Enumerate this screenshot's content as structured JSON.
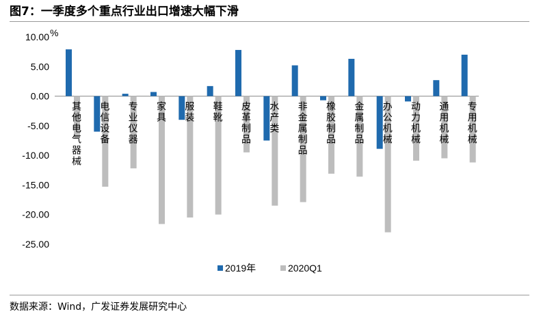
{
  "header": {
    "title": "图7：一季度多个重点行业出口增速大幅下滑"
  },
  "footer": {
    "source": "数据来源：Wind，广发证券发展研究中心"
  },
  "chart_data": {
    "type": "bar",
    "title": "",
    "xlabel": "",
    "ylabel": "%",
    "ylim": [
      -25,
      10
    ],
    "yticks": [
      10,
      5,
      0,
      -5,
      -10,
      -15,
      -20,
      -25
    ],
    "ytick_labels": [
      "10.00",
      "5.00",
      "0.00",
      "-5.00",
      "-10.00",
      "-15.00",
      "-20.00",
      "-25.00"
    ],
    "grid": false,
    "legend_position": "bottom",
    "categories": [
      "其他电气器械",
      "电信设备",
      "专业仪器",
      "家具",
      "服装",
      "鞋靴",
      "皮革制品",
      "水产类",
      "非金属制品",
      "橡胶制品",
      "金属制品",
      "办公机械",
      "动力机械",
      "通用机械",
      "专用机械"
    ],
    "series": [
      {
        "name": "2019年",
        "color": "#1F6AAE",
        "values": [
          7.9,
          -6.0,
          0.4,
          0.7,
          -4.0,
          1.7,
          7.8,
          -7.5,
          5.2,
          -0.7,
          6.3,
          -8.9,
          -0.9,
          2.7,
          7.0
        ]
      },
      {
        "name": "2020Q1",
        "color": "#BDBDBD",
        "values": [
          -7.0,
          -15.3,
          -12.2,
          -21.6,
          -20.5,
          -20.0,
          -9.5,
          -18.5,
          -17.9,
          -13.1,
          -13.6,
          -23.0,
          -10.9,
          -10.5,
          -11.2
        ]
      }
    ]
  }
}
